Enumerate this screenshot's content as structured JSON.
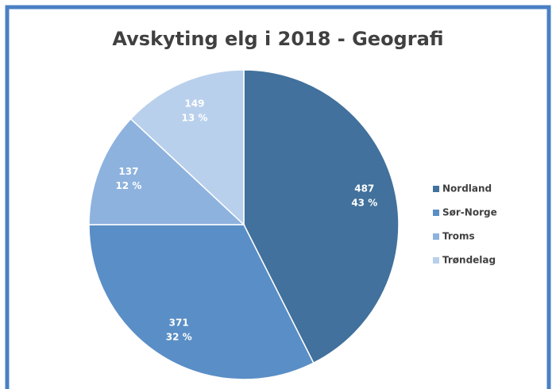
{
  "chart_data": {
    "type": "pie",
    "title": "Avskyting elg i 2018 - Geografi",
    "categories": [
      "Nordland",
      "Sør-Norge",
      "Troms",
      "Trøndelag"
    ],
    "values": [
      487,
      371,
      137,
      149
    ],
    "percent_labels": [
      "43 %",
      "32 %",
      "12 %",
      "13 %"
    ],
    "colors": [
      "#41719c",
      "#5a8ec6",
      "#8db2de",
      "#b9d0ec"
    ],
    "legend": "right"
  }
}
